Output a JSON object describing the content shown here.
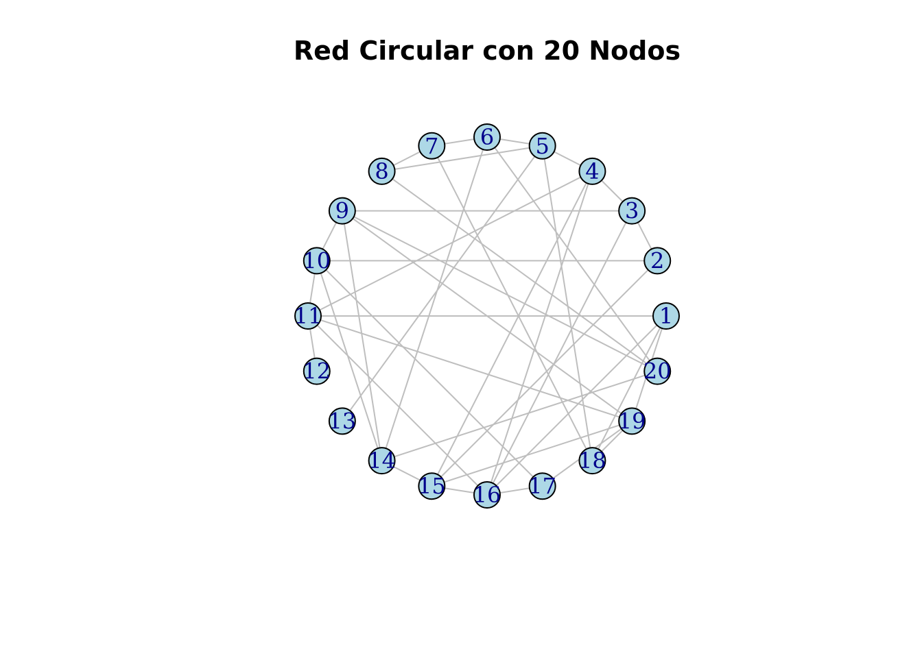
{
  "title": "Red Circular con 20 Nodos",
  "colors": {
    "node_fill": "#add8e6",
    "node_stroke": "#000000",
    "label": "#00008b",
    "edge": "#bebebe"
  },
  "nodes": [
    "1",
    "2",
    "3",
    "4",
    "5",
    "6",
    "7",
    "8",
    "9",
    "10",
    "11",
    "12",
    "13",
    "14",
    "15",
    "16",
    "17",
    "18",
    "19",
    "20"
  ],
  "edges": [
    [
      "1",
      "11"
    ],
    [
      "1",
      "18"
    ],
    [
      "1",
      "16"
    ],
    [
      "1",
      "19"
    ],
    [
      "2",
      "3"
    ],
    [
      "2",
      "10"
    ],
    [
      "2",
      "15"
    ],
    [
      "3",
      "4"
    ],
    [
      "3",
      "9"
    ],
    [
      "3",
      "16"
    ],
    [
      "4",
      "5"
    ],
    [
      "4",
      "11"
    ],
    [
      "4",
      "16"
    ],
    [
      "4",
      "15"
    ],
    [
      "5",
      "6"
    ],
    [
      "5",
      "8"
    ],
    [
      "5",
      "13"
    ],
    [
      "5",
      "18"
    ],
    [
      "6",
      "7"
    ],
    [
      "6",
      "14"
    ],
    [
      "6",
      "20"
    ],
    [
      "7",
      "8"
    ],
    [
      "7",
      "18"
    ],
    [
      "8",
      "20"
    ],
    [
      "9",
      "10"
    ],
    [
      "9",
      "14"
    ],
    [
      "9",
      "19"
    ],
    [
      "9",
      "20"
    ],
    [
      "10",
      "11"
    ],
    [
      "10",
      "14"
    ],
    [
      "10",
      "17"
    ],
    [
      "11",
      "12"
    ],
    [
      "11",
      "16"
    ],
    [
      "11",
      "19"
    ],
    [
      "14",
      "15"
    ],
    [
      "14",
      "20"
    ],
    [
      "15",
      "16"
    ],
    [
      "15",
      "19"
    ],
    [
      "16",
      "17"
    ],
    [
      "17",
      "19"
    ],
    [
      "18",
      "19"
    ]
  ]
}
